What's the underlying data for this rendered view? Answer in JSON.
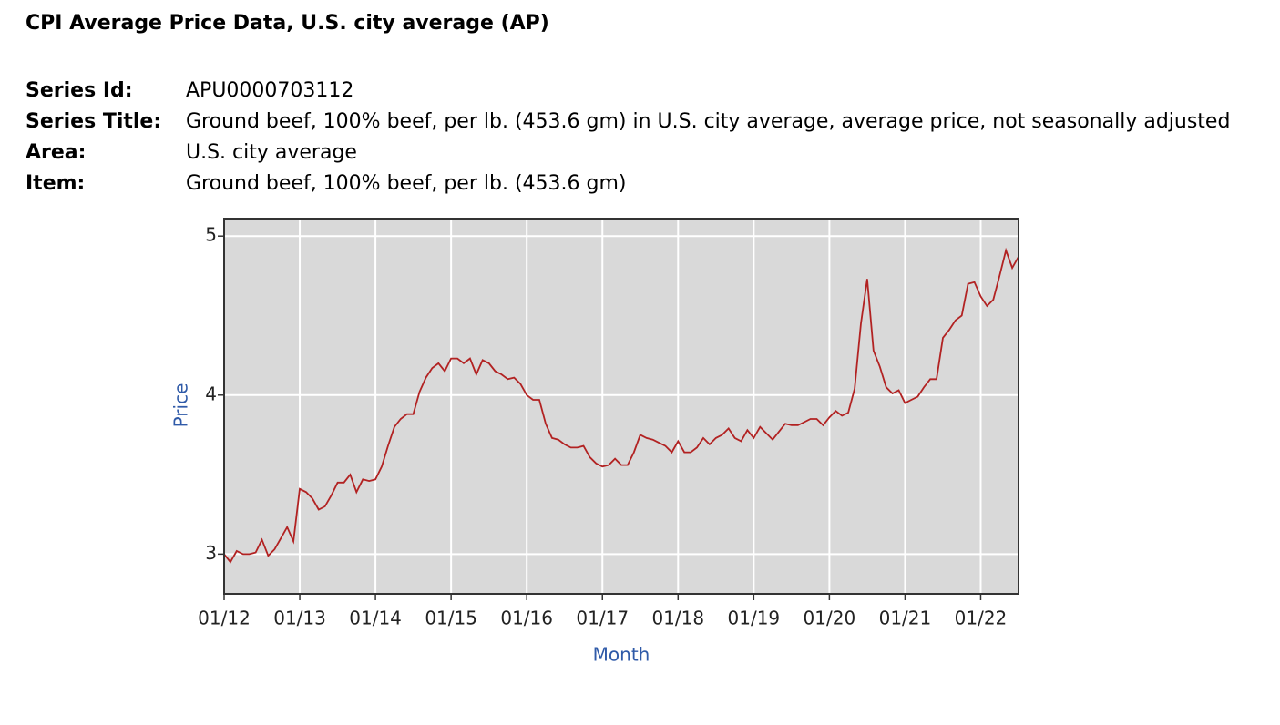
{
  "header": {
    "title": "CPI Average Price Data, U.S. city average (AP)",
    "fields": [
      {
        "label": "Series Id:",
        "value": "APU0000703112"
      },
      {
        "label": "Series Title:",
        "value": "Ground beef, 100% beef, per lb. (453.6 gm) in U.S. city average, average price, not seasonally adjusted"
      },
      {
        "label": "Area:",
        "value": "U.S. city average"
      },
      {
        "label": "Item:",
        "value": "Ground beef, 100% beef, per lb. (453.6 gm)"
      }
    ]
  },
  "chart_data": {
    "type": "line",
    "xlabel": "Month",
    "ylabel": "Price",
    "color": "#b22222",
    "grid": true,
    "categories": [
      "01/12",
      null,
      null,
      null,
      null,
      null,
      null,
      null,
      null,
      null,
      null,
      null,
      "01/13",
      null,
      null,
      null,
      null,
      null,
      null,
      null,
      null,
      null,
      null,
      null,
      "01/14",
      null,
      null,
      null,
      null,
      null,
      null,
      null,
      null,
      null,
      null,
      null,
      "01/15",
      null,
      null,
      null,
      null,
      null,
      null,
      null,
      null,
      null,
      null,
      null,
      "01/16",
      null,
      null,
      null,
      null,
      null,
      null,
      null,
      null,
      null,
      null,
      null,
      "01/17",
      null,
      null,
      null,
      null,
      null,
      null,
      null,
      null,
      null,
      null,
      null,
      "01/18",
      null,
      null,
      null,
      null,
      null,
      null,
      null,
      null,
      null,
      null,
      null,
      "01/19",
      null,
      null,
      null,
      null,
      null,
      null,
      null,
      null,
      null,
      null,
      null,
      "01/20",
      null,
      null,
      null,
      null,
      null,
      null,
      null,
      null,
      null,
      null,
      null,
      "01/21",
      null,
      null,
      null,
      null,
      null,
      null,
      null,
      null,
      null,
      null,
      null,
      "01/22",
      null,
      null,
      null,
      null,
      null,
      null
    ],
    "values": [
      3.0,
      2.95,
      3.02,
      3.0,
      3.0,
      3.01,
      3.09,
      2.99,
      3.03,
      3.1,
      3.17,
      3.08,
      3.41,
      3.39,
      3.35,
      3.28,
      3.3,
      3.37,
      3.45,
      3.45,
      3.5,
      3.39,
      3.47,
      3.46,
      3.47,
      3.55,
      3.68,
      3.8,
      3.85,
      3.88,
      3.88,
      4.02,
      4.11,
      4.17,
      4.2,
      4.15,
      4.23,
      4.23,
      4.2,
      4.23,
      4.13,
      4.22,
      4.2,
      4.15,
      4.13,
      4.1,
      4.11,
      4.07,
      4.0,
      3.97,
      3.97,
      3.82,
      3.73,
      3.72,
      3.69,
      3.67,
      3.67,
      3.68,
      3.61,
      3.57,
      3.55,
      3.56,
      3.6,
      3.56,
      3.56,
      3.64,
      3.75,
      3.73,
      3.72,
      3.7,
      3.68,
      3.64,
      3.71,
      3.64,
      3.64,
      3.67,
      3.73,
      3.69,
      3.73,
      3.75,
      3.79,
      3.73,
      3.71,
      3.78,
      3.73,
      3.8,
      3.76,
      3.72,
      3.77,
      3.82,
      3.81,
      3.81,
      3.83,
      3.85,
      3.85,
      3.81,
      3.86,
      3.9,
      3.87,
      3.89,
      4.04,
      4.45,
      4.73,
      4.28,
      4.18,
      4.05,
      4.01,
      4.03,
      3.95,
      3.97,
      3.99,
      4.05,
      4.1,
      4.1,
      4.36,
      4.41,
      4.47,
      4.5,
      4.7,
      4.71,
      4.62,
      4.56,
      4.6,
      4.75,
      4.91,
      4.8,
      4.87
    ],
    "ylim": [
      2.75,
      5.11
    ],
    "yticks": [
      3,
      4,
      5
    ]
  }
}
